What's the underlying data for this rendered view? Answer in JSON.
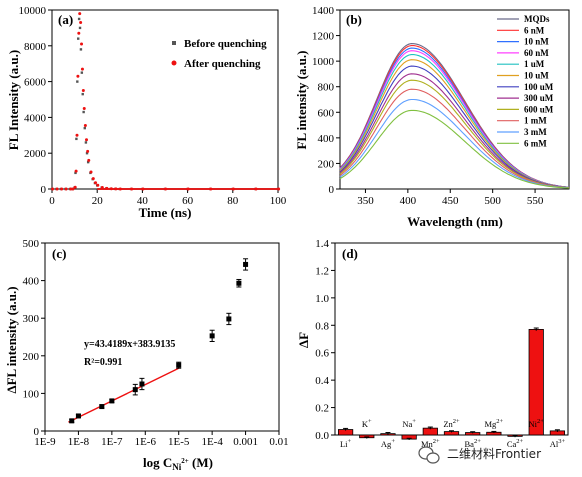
{
  "colors": {
    "spectra": [
      "#6a6a8a",
      "#ff3030",
      "#3070ff",
      "#ff40ff",
      "#20c0c0",
      "#e0a020",
      "#4040c0",
      "#a03090",
      "#b0b020",
      "#e06060",
      "#60a0ff",
      "#80c040"
    ],
    "red": "#ee1111",
    "gray": "#555555",
    "black": "#000000"
  },
  "watermark": {
    "icon": "wechat-icon",
    "text": "二维材料Frontier"
  },
  "chart_data": [
    {
      "panel": "(a)",
      "type": "scatter",
      "xlabel": "Time (ns)",
      "ylabel": "FL Intensity (a.u.)",
      "xlim": [
        0,
        100
      ],
      "ylim": [
        0,
        10000
      ],
      "xticks": [
        "0",
        "20",
        "40",
        "60",
        "80",
        "100"
      ],
      "yticks": [
        "0",
        "2000",
        "4000",
        "6000",
        "8000",
        "10000"
      ],
      "legend_position": "top-right",
      "series": [
        {
          "name": "Before quenching",
          "color": "#555555",
          "x": [
            0,
            2,
            4,
            6,
            8,
            9,
            10,
            10.4,
            10.8,
            11.2,
            11.6,
            12,
            12.4,
            12.8,
            13.2,
            13.6,
            14,
            14.5,
            15,
            15.5,
            16,
            17,
            18,
            19,
            20,
            22,
            24,
            26,
            28,
            30,
            35,
            40,
            50,
            60,
            70,
            80,
            90,
            100
          ],
          "y": [
            0,
            0,
            0,
            0,
            0,
            0,
            80,
            900,
            2800,
            6000,
            8400,
            9500,
            9000,
            7800,
            6500,
            5300,
            4300,
            3400,
            2600,
            2000,
            1500,
            900,
            550,
            330,
            200,
            80,
            30,
            10,
            5,
            0,
            0,
            0,
            0,
            0,
            0,
            0,
            0,
            0
          ]
        },
        {
          "name": "After quenching",
          "color": "#ee1111",
          "x": [
            0,
            2,
            4,
            6,
            8,
            9,
            10,
            10.4,
            10.8,
            11.2,
            11.6,
            12,
            12.4,
            12.8,
            13.2,
            13.6,
            14,
            14.5,
            15,
            15.5,
            16,
            17,
            18,
            19,
            20,
            22,
            24,
            26,
            28,
            30,
            35,
            40,
            50,
            60,
            70,
            80,
            90,
            100
          ],
          "y": [
            0,
            0,
            0,
            0,
            0,
            0,
            100,
            1000,
            3000,
            6300,
            8700,
            9800,
            9300,
            8100,
            6700,
            5500,
            4500,
            3550,
            2750,
            2100,
            1600,
            950,
            580,
            350,
            210,
            85,
            32,
            12,
            5,
            0,
            0,
            0,
            0,
            0,
            0,
            0,
            0,
            0
          ]
        }
      ]
    },
    {
      "panel": "(b)",
      "type": "line",
      "xlabel": "Wavelength (nm)",
      "ylabel": "FL intensity (a.u.)",
      "xlim": [
        320,
        590
      ],
      "ylim": [
        0,
        1400
      ],
      "xticks": [
        "350",
        "400",
        "450",
        "500",
        "550"
      ],
      "yticks": [
        "0",
        "200",
        "400",
        "600",
        "800",
        "1000",
        "1200",
        "1400"
      ],
      "legend_position": "top-right",
      "peak_nm": 405,
      "series": [
        {
          "name": "MQDs",
          "peak": 1135
        },
        {
          "name": "6 nM",
          "peak": 1120
        },
        {
          "name": "10 nM",
          "peak": 1100
        },
        {
          "name": "60 nM",
          "peak": 1080
        },
        {
          "name": "1 uM",
          "peak": 1050
        },
        {
          "name": "10 uM",
          "peak": 1010
        },
        {
          "name": "100 uM",
          "peak": 960
        },
        {
          "name": "300 uM",
          "peak": 900
        },
        {
          "name": "600 uM",
          "peak": 850
        },
        {
          "name": "1 mM",
          "peak": 780
        },
        {
          "name": "3 mM",
          "peak": 700
        },
        {
          "name": "6 mM",
          "peak": 615
        }
      ]
    },
    {
      "panel": "(c)",
      "type": "scatter",
      "xlabel_main": "log C",
      "xlabel_sub": "Ni",
      "xlabel_sup": "2+",
      "xlabel_unit": " (M)",
      "ylabel": "ΔFL intensity (a.u.)",
      "xlim_log": [
        -9,
        -2
      ],
      "ylim": [
        0,
        500
      ],
      "xticks": [
        "1E-9",
        "1E-8",
        "1E-7",
        "1E-6",
        "1E-5",
        "1E-4",
        "0.001",
        "0.01"
      ],
      "yticks": [
        "0",
        "100",
        "200",
        "300",
        "400",
        "500"
      ],
      "equation": "y=43.4189x+383.9135",
      "r_squared": "R²=0.991",
      "points_log_x": [
        -8.2,
        -8.0,
        -7.3,
        -7.0,
        -6.3,
        -6.1,
        -5.0,
        -4.0,
        -3.5,
        -3.2,
        -3.0
      ],
      "points_y": [
        27,
        40,
        65,
        80,
        110,
        125,
        175,
        253,
        298,
        393,
        443
      ],
      "errors": [
        4,
        4,
        4,
        4,
        14,
        15,
        8,
        15,
        15,
        10,
        15
      ],
      "fit_log_x": [
        -8.3,
        -5.0
      ]
    },
    {
      "panel": "(d)",
      "type": "bar",
      "ylabel": "ΔF",
      "ylim": [
        0,
        1.4
      ],
      "yticks": [
        "0.0",
        "0.2",
        "0.4",
        "0.6",
        "0.8",
        "1.0",
        "1.2",
        "1.4"
      ],
      "categories": [
        {
          "base": "Li",
          "sup": "+"
        },
        {
          "base": "K",
          "sup": "+"
        },
        {
          "base": "Ag",
          "sup": "+"
        },
        {
          "base": "Na",
          "sup": "+"
        },
        {
          "base": "Mn",
          "sup": "2+"
        },
        {
          "base": "Zn",
          "sup": "2+"
        },
        {
          "base": "Ba",
          "sup": "2+"
        },
        {
          "base": "Mg",
          "sup": "2+"
        },
        {
          "base": "Ca",
          "sup": "2+"
        },
        {
          "base": "Ni",
          "sup": "2+"
        },
        {
          "base": "Al",
          "sup": "3+"
        }
      ],
      "values": [
        0.04,
        -0.02,
        0.01,
        -0.03,
        0.05,
        0.025,
        0.018,
        0.02,
        -0.01,
        0.77,
        0.03
      ],
      "errors": [
        0.008,
        0.006,
        0.008,
        0.006,
        0.008,
        0.006,
        0.006,
        0.006,
        0.006,
        0.01,
        0.008
      ]
    }
  ]
}
